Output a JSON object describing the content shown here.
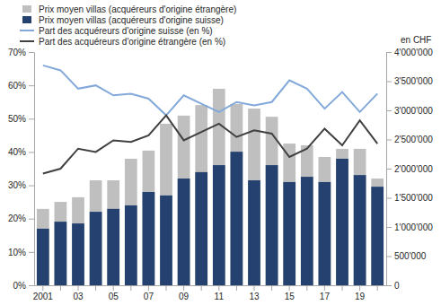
{
  "chart_data": {
    "type": "bar",
    "categories": [
      "2001",
      null,
      "03",
      null,
      "05",
      null,
      "07",
      null,
      "09",
      null,
      "11",
      null,
      "13",
      null,
      "15",
      null,
      "17",
      null,
      "19",
      null
    ],
    "series": [
      {
        "name": "Prix moyen villas (acquéreurs d'origine étrangère)",
        "type": "bar",
        "axis": "y2",
        "color": "#bfbfbf",
        "values": [
          1310000,
          1430000,
          1510000,
          1800000,
          1800000,
          2170000,
          2310000,
          2770000,
          2910000,
          3090000,
          3370000,
          3110000,
          3030000,
          2890000,
          2430000,
          2400000,
          2200000,
          2340000,
          2340000,
          1830000
        ]
      },
      {
        "name": "Prix moyen villas (acquéreurs d'origine suisse)",
        "type": "bar",
        "axis": "y2",
        "color": "#24416f",
        "values": [
          970000,
          1090000,
          1060000,
          1260000,
          1310000,
          1370000,
          1600000,
          1540000,
          1830000,
          1940000,
          2060000,
          2290000,
          1800000,
          2060000,
          1770000,
          1860000,
          1770000,
          2170000,
          1890000,
          1690000
        ]
      },
      {
        "name": "Part des acquéreurs d'origine suisse (en %)",
        "type": "line",
        "color": "#82a9da",
        "values": [
          66,
          64.5,
          59,
          60,
          57,
          57.5,
          56,
          51,
          57,
          54.5,
          52,
          55,
          54,
          55,
          61.5,
          59,
          53,
          58,
          52,
          57.5
        ]
      },
      {
        "name": "Part des acquéreurs d'origine étrangère (en %)",
        "type": "line",
        "color": "#404040",
        "values": [
          33.5,
          35,
          41,
          40,
          43.5,
          43,
          45,
          51,
          43.5,
          46,
          48.5,
          44.5,
          46.5,
          45.5,
          38.5,
          41,
          47,
          42,
          49.5,
          42.5
        ]
      }
    ],
    "ylim": [
      0,
      70
    ],
    "yticks": [
      {
        "value": 0,
        "label": "0%"
      },
      {
        "value": 10,
        "label": "10%"
      },
      {
        "value": 20,
        "label": "20%"
      },
      {
        "value": 30,
        "label": "30%"
      },
      {
        "value": 40,
        "label": "40%"
      },
      {
        "value": 50,
        "label": "50%"
      },
      {
        "value": 60,
        "label": "60%"
      },
      {
        "value": 70,
        "label": "70%"
      }
    ],
    "y2lim": [
      0,
      4000000
    ],
    "y2ticks": [
      0,
      {
        "value": 500000,
        "label": "500'000"
      },
      {
        "value": 1000000,
        "label": "1'000'000"
      },
      {
        "value": 1500000,
        "label": "1'500'000"
      },
      {
        "value": 2000000,
        "label": "2'000'000"
      },
      {
        "value": 2500000,
        "label": "2'500'000"
      },
      {
        "value": 3000000,
        "label": "3'000'000"
      },
      {
        "value": 3500000,
        "label": "3'500'000"
      },
      {
        "value": 4000000,
        "label": "4'000'000"
      }
    ],
    "y2label": "en CHF",
    "stacked": false,
    "grid": false,
    "legend": "top-left"
  }
}
